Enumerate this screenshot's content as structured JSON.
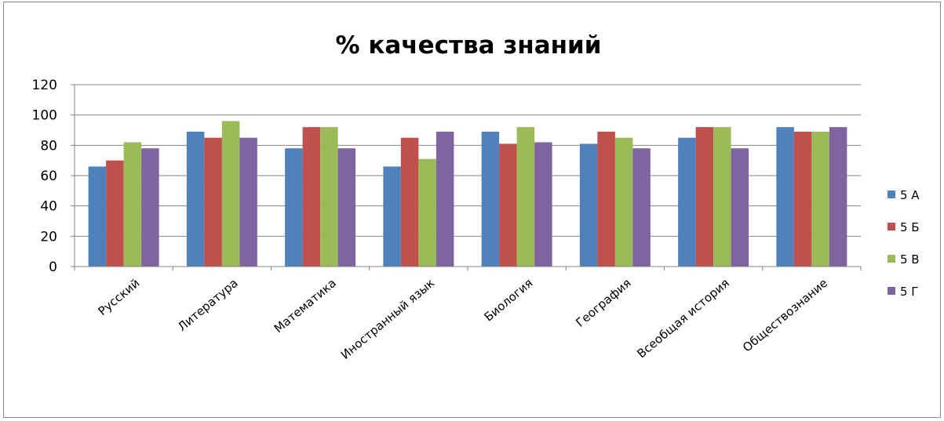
{
  "chart_data": {
    "type": "bar",
    "title": "% качества знаний",
    "xlabel": "",
    "ylabel": "",
    "ylim": [
      0,
      120
    ],
    "yticks": [
      0,
      20,
      40,
      60,
      80,
      100,
      120
    ],
    "grid": true,
    "legend_position": "right",
    "categories": [
      "Русский",
      "Литература",
      "Математика",
      "Иностранный язык",
      "Биология",
      "География",
      "Всеобщая история",
      "Обществознание"
    ],
    "series": [
      {
        "name": "5 А",
        "color": "#4f81bd",
        "values": [
          66,
          89,
          78,
          66,
          89,
          81,
          85,
          92
        ]
      },
      {
        "name": "5 Б",
        "color": "#c0504d",
        "values": [
          70,
          85,
          92,
          85,
          81,
          89,
          92,
          89
        ]
      },
      {
        "name": "5 В",
        "color": "#9bbb59",
        "values": [
          82,
          96,
          92,
          71,
          92,
          85,
          92,
          89
        ]
      },
      {
        "name": "5 Г",
        "color": "#8064a2",
        "values": [
          78,
          85,
          78,
          89,
          82,
          78,
          78,
          92
        ]
      }
    ]
  }
}
